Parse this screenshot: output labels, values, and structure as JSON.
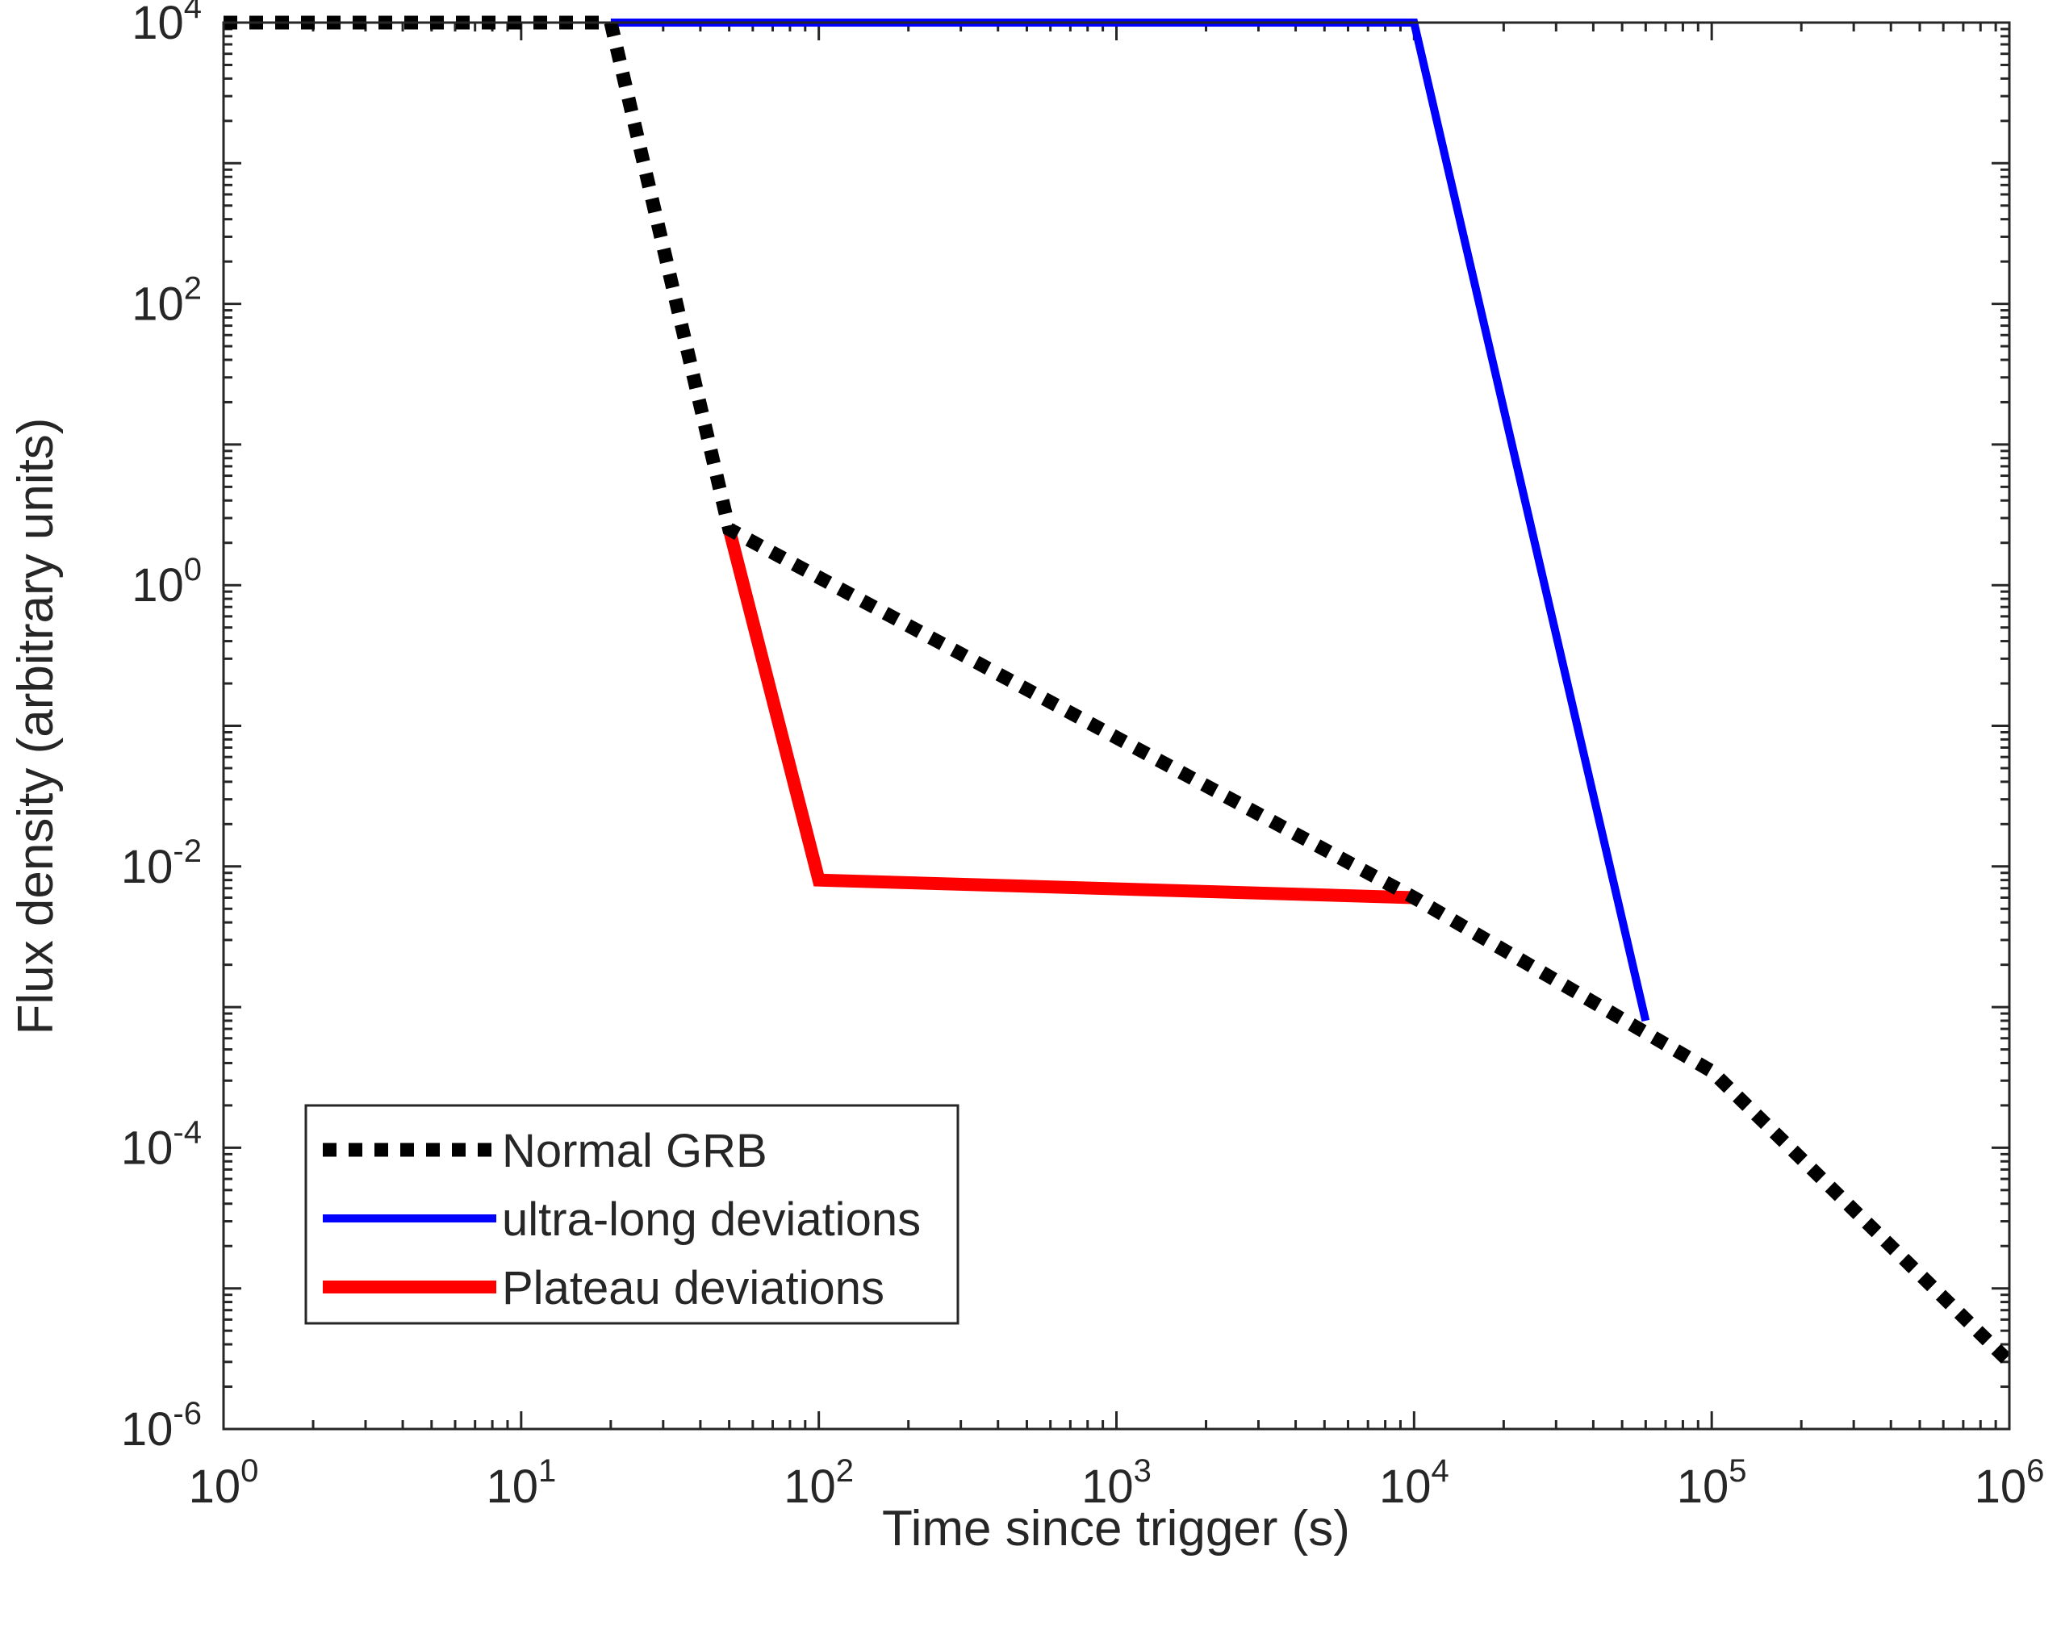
{
  "chart_data": {
    "type": "line",
    "title": "",
    "xlabel": "Time since trigger (s)",
    "ylabel": "Flux density (arbitrary units)",
    "xscale": "log",
    "yscale": "log",
    "xlim": [
      1,
      1000000
    ],
    "ylim": [
      1e-06,
      10000
    ],
    "xticks": [
      {
        "value": 1,
        "base": "10",
        "exp": "0"
      },
      {
        "value": 10,
        "base": "10",
        "exp": "1"
      },
      {
        "value": 100,
        "base": "10",
        "exp": "2"
      },
      {
        "value": 1000,
        "base": "10",
        "exp": "3"
      },
      {
        "value": 10000,
        "base": "10",
        "exp": "4"
      },
      {
        "value": 100000,
        "base": "10",
        "exp": "5"
      },
      {
        "value": 1000000,
        "base": "10",
        "exp": "6"
      }
    ],
    "yticks": [
      {
        "value": 1e-06,
        "base": "10",
        "exp": "-6"
      },
      {
        "value": 0.0001,
        "base": "10",
        "exp": "-4"
      },
      {
        "value": 0.01,
        "base": "10",
        "exp": "-2"
      },
      {
        "value": 1,
        "base": "10",
        "exp": "0"
      },
      {
        "value": 100,
        "base": "10",
        "exp": "2"
      },
      {
        "value": 10000,
        "base": "10",
        "exp": "4"
      }
    ],
    "grid": false,
    "legend_position": "bottom-left",
    "series": [
      {
        "name": "Normal GRB",
        "color": "#000000",
        "style": "dotted",
        "points": [
          [
            1,
            10000
          ],
          [
            20,
            10000
          ],
          [
            50,
            2.5
          ],
          [
            10000,
            0.006
          ],
          [
            100000,
            0.00035
          ],
          [
            1000000,
            3e-06
          ]
        ]
      },
      {
        "name": "ultra-long deviations",
        "color": "#0000ff",
        "style": "solid",
        "points": [
          [
            20,
            10000
          ],
          [
            10000,
            10000
          ],
          [
            60000,
            0.0008
          ]
        ]
      },
      {
        "name": "Plateau deviations",
        "color": "#ff0000",
        "style": "solid",
        "points": [
          [
            50,
            2.5
          ],
          [
            100,
            0.008
          ],
          [
            10000,
            0.006
          ]
        ]
      }
    ]
  }
}
